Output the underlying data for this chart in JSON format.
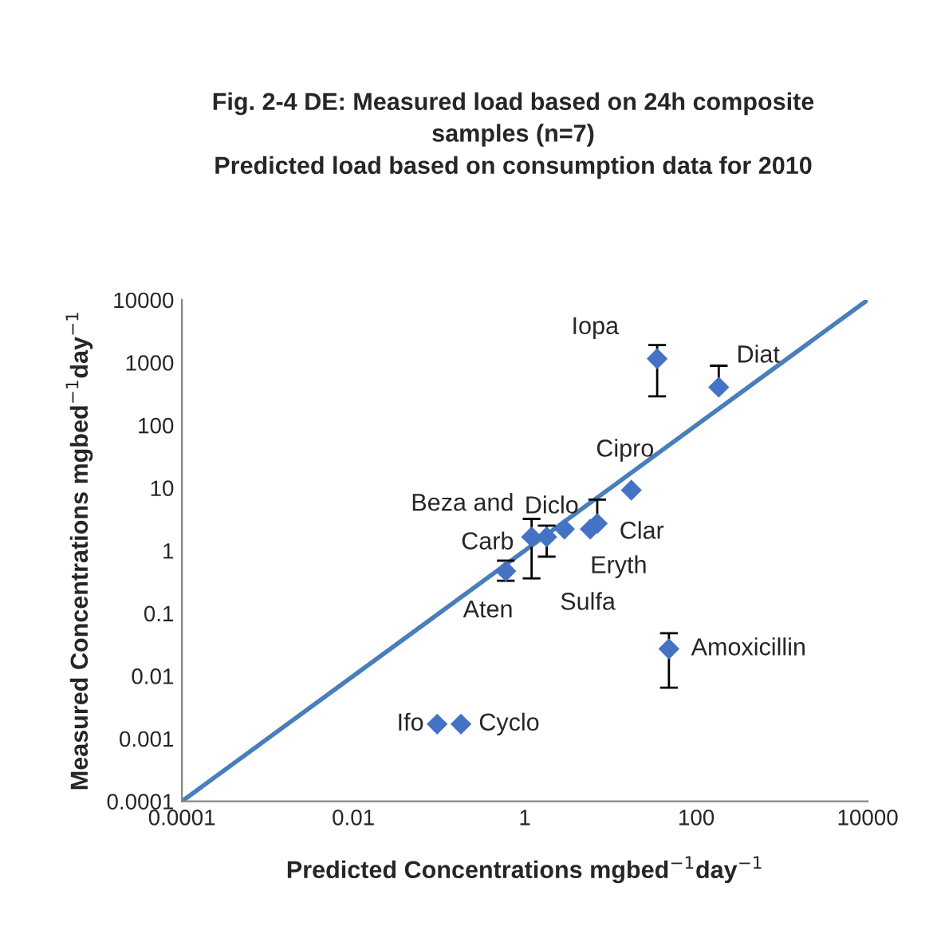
{
  "chart_data": {
    "type": "scatter",
    "title": "Fig. 2-4 DE: Measured load based on 24h composite\nsamples (n=7)",
    "subtitle": "Predicted load based on consumption data for 2010",
    "xlabel": "Predicted Concentrations mgbed$^{−1}$day$^{−1}$",
    "ylabel": "Measured Concentrations mgbed$^{−1}$day$^{−1}$",
    "log": "xy",
    "grid": false,
    "legend": false,
    "marker": "diamond",
    "xlim": [
      0.0001,
      10000
    ],
    "xticks": [
      0.0001,
      0.01,
      1,
      100,
      10000
    ],
    "ylim": [
      0.0001,
      10000
    ],
    "yticks": [
      0.0001,
      0.001,
      0.01,
      0.1,
      1,
      10,
      100,
      1000,
      10000
    ],
    "series": [
      {
        "type": "line",
        "color": "#4a7ebb",
        "marker": "none",
        "line_style": "solid",
        "x": [
          0.0001,
          10000
        ],
        "values": [
          0.0001,
          10000
        ]
      },
      {
        "type": "scatter",
        "color": "#4472c4",
        "x": [
          35,
          183,
          17.5,
          7,
          5.8,
          2.9,
          1.8,
          1.2,
          0.6,
          48,
          0.095,
          0.18
        ],
        "values": [
          1150,
          405,
          9.2,
          2.7,
          2.2,
          2.2,
          1.65,
          1.65,
          0.47,
          0.027,
          0.0017,
          0.0017
        ],
        "errors": [
          [
            290,
            1900
          ],
          [
            405,
            890
          ],
          null,
          [
            2.7,
            6.5
          ],
          null,
          null,
          [
            0.8,
            2.5
          ],
          [
            0.36,
            3.2
          ],
          [
            0.33,
            0.69
          ],
          [
            0.0065,
            0.048
          ],
          null,
          null
        ]
      }
    ],
    "annotations": [
      {
        "text": "Iopa",
        "x": 35,
        "y": 1150
      },
      {
        "text": "Diat",
        "x": 183,
        "y": 405
      },
      {
        "text": "Cipro",
        "x": 17.5,
        "y": 9.2
      },
      {
        "text": "Clar",
        "x": 7,
        "y": 2.7
      },
      {
        "text": "Eryth",
        "x": 5.8,
        "y": 2.2
      },
      {
        "text": "Diclo",
        "x": 2.9,
        "y": 2.2
      },
      {
        "text": "Sulfa",
        "x": 1.8,
        "y": 1.65
      },
      {
        "text": "Beza and\nCarb",
        "x": 1.2,
        "y": 1.65
      },
      {
        "text": "Aten",
        "x": 0.6,
        "y": 0.47
      },
      {
        "text": "Amoxicillin",
        "x": 48,
        "y": 0.027
      },
      {
        "text": "Ifo",
        "x": 0.095,
        "y": 0.0017
      },
      {
        "text": "Cyclo",
        "x": 0.18,
        "y": 0.0017
      }
    ]
  }
}
